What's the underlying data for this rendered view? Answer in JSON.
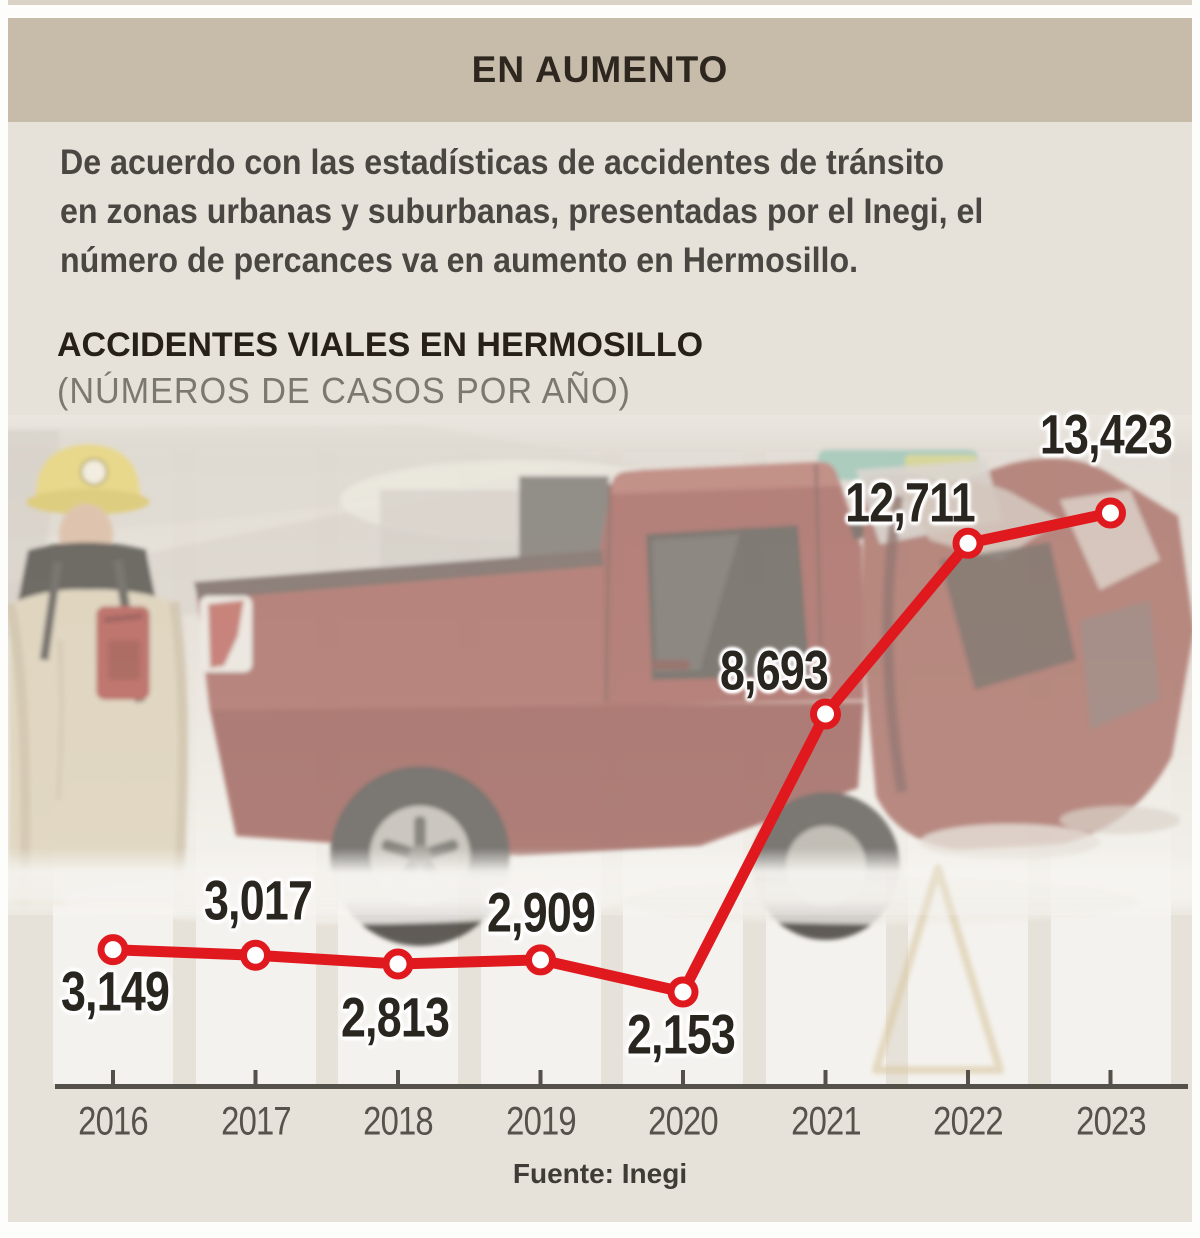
{
  "header": {
    "title": "EN AUMENTO"
  },
  "intro": {
    "text": "De acuerdo con las estadísticas de accidentes de tránsito\nen zonas urbanas y suburbanas, presentadas por el Inegi, el\nnúmero de percances va en aumento en Hermosillo."
  },
  "chart_data": {
    "type": "line",
    "title": "ACCIDENTES VIALES EN HERMOSILLO",
    "subtitle": "(NÚMEROS DE CASOS POR AÑO)",
    "categories": [
      "2016",
      "2017",
      "2018",
      "2019",
      "2020",
      "2021",
      "2022",
      "2023"
    ],
    "values": [
      3149,
      3017,
      2813,
      2909,
      2153,
      8693,
      12711,
      13423
    ],
    "data_labels": [
      "3,149",
      "3,017",
      "2,813",
      "2,909",
      "2,153",
      "8,693",
      "12,711",
      "13,423"
    ],
    "line_color": "#e0191f",
    "marker": "white-circle-red-ring",
    "grid": "off",
    "legend": "none",
    "ylim": [
      2153,
      13423
    ]
  },
  "source": {
    "label": "Fuente: Inegi"
  },
  "colors": {
    "header_band": "#c7bbaa",
    "panel_background": "#e7e2d9",
    "line_red": "#e0191f",
    "axis": "#54504a",
    "label_text": "#29251f"
  }
}
